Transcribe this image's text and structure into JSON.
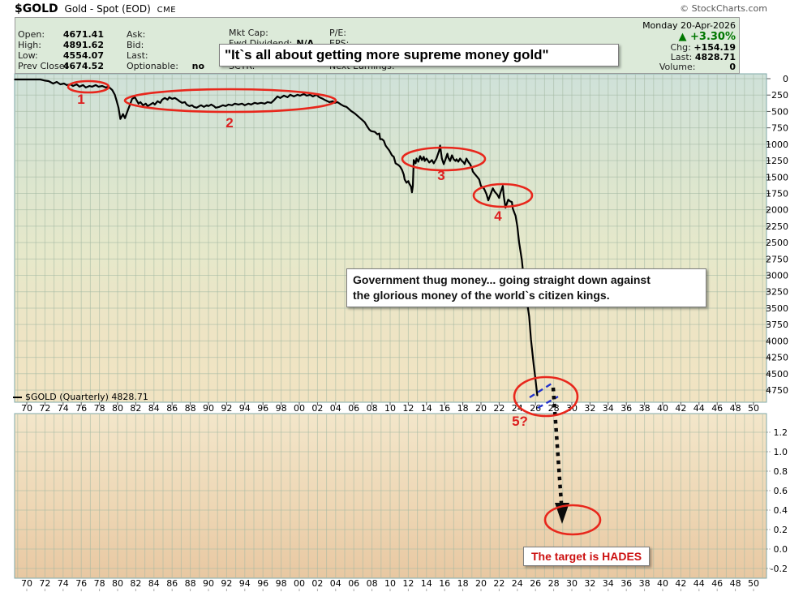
{
  "header": {
    "symbol": "$GOLD",
    "title": "Gold - Spot (EOD)",
    "exchange": "CME",
    "copyright": "© StockCharts.com",
    "date": "Monday 20-Apr-2026",
    "change_arrow": "▲",
    "change_pct": "+3.30%",
    "chg_label": "Chg:",
    "chg_value": "+154.19",
    "last_label": "Last:",
    "last_value": "4828.71",
    "volume_label": "Volume:",
    "volume_value": "0",
    "quote_col1": [
      {
        "label": "Open:",
        "value": "4671.41"
      },
      {
        "label": "High:",
        "value": "4891.62"
      },
      {
        "label": "Low:",
        "value": "4554.07"
      },
      {
        "label": "Prev Close:",
        "value": "4674.52"
      }
    ],
    "quote_col2": [
      {
        "label": "Ask:",
        "value": ""
      },
      {
        "label": "Bid:",
        "value": ""
      },
      {
        "label": "Last:",
        "value": ""
      },
      {
        "label": "Optionable:",
        "value": "no"
      }
    ],
    "quote_col3": [
      {
        "label": "Mkt Cap:",
        "value": ""
      },
      {
        "label": "Fwd Dividend:",
        "value": "N/A"
      },
      {
        "label": "SCTR:",
        "value": ""
      }
    ],
    "quote_col4": [
      {
        "label": "P/E:",
        "value": ""
      },
      {
        "label": "EPS:",
        "value": ""
      },
      {
        "label": "Next Earnings:",
        "value": ""
      }
    ]
  },
  "legend": {
    "marker": "—",
    "text": "$GOLD (Quarterly) 4828.71"
  },
  "annotations": {
    "quote_banner": "\"It`s all about getting more supreme money gold\"",
    "thug_line1": "Government thug money... going straight down against",
    "thug_line2": "the glorious money of the world`s citizen kings.",
    "target_text": "The target is HADES"
  },
  "colors": {
    "up_green": "#007700",
    "annotation_red": "#e8271c",
    "dash_blue": "#2233cc",
    "price_line": "#000000",
    "panel_green": "#dcead9"
  },
  "chart_data": {
    "type": "line",
    "title": "$GOLD Gold - Spot (EOD) CME",
    "subtitle_note": "inverted-scale quarterly gold chart, price axis increases downward",
    "legend_entry": "$GOLD (Quarterly) 4828.71",
    "last_value": 4828.71,
    "x_years_start": 1970,
    "x_years_end": 2050,
    "x_tick_labels": [
      "70",
      "72",
      "74",
      "76",
      "78",
      "80",
      "82",
      "84",
      "86",
      "88",
      "90",
      "92",
      "94",
      "96",
      "98",
      "00",
      "02",
      "04",
      "06",
      "08",
      "10",
      "12",
      "14",
      "16",
      "18",
      "20",
      "22",
      "24",
      "26",
      "28",
      "30",
      "32",
      "34",
      "36",
      "38",
      "40",
      "42",
      "44",
      "46",
      "48",
      "50"
    ],
    "main_axis": {
      "ticks": [
        0,
        250,
        500,
        750,
        1000,
        1250,
        1500,
        1750,
        2000,
        2250,
        2500,
        2750,
        3000,
        3250,
        3500,
        3750,
        4000,
        4250,
        4500,
        4750
      ],
      "inverted": true,
      "ylim": [
        0,
        4750
      ]
    },
    "lower_axis": {
      "ticks": [
        1.2,
        1.0,
        0.8,
        0.6,
        0.4,
        0.2,
        0.0,
        -0.2
      ],
      "ylim": [
        -0.31,
        1.39
      ]
    },
    "grid": true,
    "series": [
      {
        "name": "$GOLD (Quarterly)",
        "points": [
          [
            1968.7,
            12
          ],
          [
            1971.5,
            12
          ],
          [
            1972.0,
            30
          ],
          [
            1972.4,
            37
          ],
          [
            1972.9,
            74
          ],
          [
            1973.3,
            49
          ],
          [
            1973.7,
            86
          ],
          [
            1974.1,
            74
          ],
          [
            1974.4,
            98
          ],
          [
            1974.8,
            86
          ],
          [
            1975.1,
            111
          ],
          [
            1975.5,
            86
          ],
          [
            1975.8,
            123
          ],
          [
            1976.2,
            98
          ],
          [
            1976.5,
            135
          ],
          [
            1976.9,
            111
          ],
          [
            1977.2,
            123
          ],
          [
            1977.6,
            98
          ],
          [
            1977.9,
            123
          ],
          [
            1978.3,
            111
          ],
          [
            1978.7,
            135
          ],
          [
            1979.0,
            123
          ],
          [
            1979.4,
            172
          ],
          [
            1979.7,
            246
          ],
          [
            1979.9,
            344
          ],
          [
            1980.1,
            443
          ],
          [
            1980.3,
            615
          ],
          [
            1980.6,
            541
          ],
          [
            1980.8,
            603
          ],
          [
            1981.1,
            492
          ],
          [
            1981.4,
            381
          ],
          [
            1981.6,
            308
          ],
          [
            1981.9,
            283
          ],
          [
            1982.1,
            332
          ],
          [
            1982.3,
            381
          ],
          [
            1982.5,
            357
          ],
          [
            1982.8,
            406
          ],
          [
            1983.1,
            381
          ],
          [
            1983.3,
            418
          ],
          [
            1983.6,
            394
          ],
          [
            1983.9,
            369
          ],
          [
            1984.1,
            394
          ],
          [
            1984.4,
            344
          ],
          [
            1984.7,
            369
          ],
          [
            1984.9,
            320
          ],
          [
            1985.2,
            295
          ],
          [
            1985.5,
            320
          ],
          [
            1985.7,
            283
          ],
          [
            1986.0,
            308
          ],
          [
            1986.3,
            295
          ],
          [
            1986.6,
            320
          ],
          [
            1986.8,
            344
          ],
          [
            1987.1,
            369
          ],
          [
            1987.4,
            357
          ],
          [
            1987.6,
            394
          ],
          [
            1987.9,
            418
          ],
          [
            1988.2,
            406
          ],
          [
            1988.4,
            431
          ],
          [
            1988.7,
            443
          ],
          [
            1989.0,
            418
          ],
          [
            1989.2,
            406
          ],
          [
            1989.5,
            431
          ],
          [
            1989.8,
            406
          ],
          [
            1990.0,
            418
          ],
          [
            1990.3,
            394
          ],
          [
            1990.6,
            418
          ],
          [
            1990.8,
            443
          ],
          [
            1991.2,
            431
          ],
          [
            1991.6,
            406
          ],
          [
            1991.9,
            418
          ],
          [
            1992.2,
            394
          ],
          [
            1992.6,
            406
          ],
          [
            1992.9,
            381
          ],
          [
            1993.3,
            394
          ],
          [
            1993.7,
            381
          ],
          [
            1994.0,
            406
          ],
          [
            1994.4,
            381
          ],
          [
            1994.7,
            394
          ],
          [
            1995.1,
            369
          ],
          [
            1995.4,
            381
          ],
          [
            1995.8,
            369
          ],
          [
            1996.2,
            381
          ],
          [
            1996.5,
            357
          ],
          [
            1996.9,
            369
          ],
          [
            1997.2,
            332
          ],
          [
            1997.6,
            271
          ],
          [
            1997.9,
            295
          ],
          [
            1998.3,
            258
          ],
          [
            1998.7,
            283
          ],
          [
            1999.0,
            246
          ],
          [
            1999.4,
            271
          ],
          [
            1999.8,
            246
          ],
          [
            2000.1,
            258
          ],
          [
            2000.5,
            234
          ],
          [
            2000.8,
            258
          ],
          [
            2001.2,
            246
          ],
          [
            2001.5,
            271
          ],
          [
            2001.9,
            246
          ],
          [
            2002.2,
            283
          ],
          [
            2002.6,
            308
          ],
          [
            2002.9,
            332
          ],
          [
            2003.3,
            357
          ],
          [
            2003.7,
            344
          ],
          [
            2003.9,
            369
          ],
          [
            2004.2,
            357
          ],
          [
            2004.6,
            394
          ],
          [
            2004.9,
            418
          ],
          [
            2005.2,
            431
          ],
          [
            2005.4,
            455
          ],
          [
            2005.7,
            492
          ],
          [
            2006.1,
            529
          ],
          [
            2006.3,
            554
          ],
          [
            2006.7,
            603
          ],
          [
            2007.0,
            640
          ],
          [
            2007.2,
            664
          ],
          [
            2007.4,
            713
          ],
          [
            2007.7,
            775
          ],
          [
            2007.9,
            800
          ],
          [
            2008.3,
            812
          ],
          [
            2008.6,
            849
          ],
          [
            2008.8,
            836
          ],
          [
            2008.9,
            923
          ],
          [
            2009.1,
            923
          ],
          [
            2009.3,
            947
          ],
          [
            2009.5,
            1021
          ],
          [
            2009.7,
            1058
          ],
          [
            2009.9,
            1095
          ],
          [
            2010.2,
            1169
          ],
          [
            2010.4,
            1193
          ],
          [
            2010.6,
            1292
          ],
          [
            2010.9,
            1316
          ],
          [
            2011.1,
            1341
          ],
          [
            2011.3,
            1390
          ],
          [
            2011.5,
            1464
          ],
          [
            2011.6,
            1538
          ],
          [
            2011.8,
            1587
          ],
          [
            2012.0,
            1562
          ],
          [
            2012.1,
            1599
          ],
          [
            2012.3,
            1648
          ],
          [
            2012.4,
            1734
          ],
          [
            2012.5,
            1636
          ],
          [
            2012.6,
            1242
          ],
          [
            2012.8,
            1292
          ],
          [
            2012.9,
            1218
          ],
          [
            2013.1,
            1267
          ],
          [
            2013.3,
            1181
          ],
          [
            2013.5,
            1242
          ],
          [
            2013.7,
            1193
          ],
          [
            2013.8,
            1255
          ],
          [
            2014.0,
            1218
          ],
          [
            2014.3,
            1279
          ],
          [
            2014.6,
            1242
          ],
          [
            2014.8,
            1292
          ],
          [
            2015.1,
            1218
          ],
          [
            2015.4,
            1095
          ],
          [
            2015.5,
            1021
          ],
          [
            2015.7,
            1218
          ],
          [
            2015.9,
            1304
          ],
          [
            2016.1,
            1230
          ],
          [
            2016.3,
            1144
          ],
          [
            2016.4,
            1205
          ],
          [
            2016.6,
            1255
          ],
          [
            2016.8,
            1169
          ],
          [
            2017.0,
            1230
          ],
          [
            2017.2,
            1255
          ],
          [
            2017.3,
            1230
          ],
          [
            2017.5,
            1267
          ],
          [
            2017.7,
            1218
          ],
          [
            2017.9,
            1255
          ],
          [
            2018.1,
            1279
          ],
          [
            2018.2,
            1304
          ],
          [
            2018.4,
            1218
          ],
          [
            2018.6,
            1267
          ],
          [
            2018.8,
            1304
          ],
          [
            2019.0,
            1365
          ],
          [
            2019.1,
            1415
          ],
          [
            2019.3,
            1452
          ],
          [
            2019.6,
            1501
          ],
          [
            2019.8,
            1538
          ],
          [
            2020.0,
            1636
          ],
          [
            2020.3,
            1673
          ],
          [
            2020.4,
            1697
          ],
          [
            2020.6,
            1759
          ],
          [
            2020.8,
            1857
          ],
          [
            2021.0,
            1784
          ],
          [
            2021.3,
            1673
          ],
          [
            2021.5,
            1722
          ],
          [
            2021.8,
            1771
          ],
          [
            2022.0,
            1820
          ],
          [
            2022.1,
            1759
          ],
          [
            2022.4,
            1636
          ],
          [
            2022.5,
            1784
          ],
          [
            2022.7,
            1968
          ],
          [
            2022.9,
            1882
          ],
          [
            2023.0,
            1845
          ],
          [
            2023.2,
            1870
          ],
          [
            2023.4,
            1882
          ],
          [
            2023.5,
            1980
          ],
          [
            2023.7,
            2054
          ],
          [
            2023.8,
            2091
          ],
          [
            2024.0,
            2251
          ],
          [
            2024.2,
            2497
          ],
          [
            2024.5,
            2768
          ],
          [
            2024.7,
            3038
          ],
          [
            2025.0,
            3333
          ],
          [
            2025.3,
            3629
          ],
          [
            2025.5,
            3973
          ],
          [
            2025.8,
            4367
          ],
          [
            2026.0,
            4588
          ],
          [
            2026.2,
            4829
          ]
        ]
      }
    ],
    "ellipse_annotations": [
      {
        "label": "1",
        "cx": 109,
        "cy": 107,
        "rx": 25,
        "ry": 7,
        "lx": 100,
        "ly": 128
      },
      {
        "label": "2",
        "cx": 284,
        "cy": 124,
        "rx": 130,
        "ry": 14,
        "lx": 283,
        "ly": 157
      },
      {
        "label": "3",
        "cx": 547,
        "cy": 196,
        "rx": 51,
        "ry": 14,
        "lx": 544,
        "ly": 222
      },
      {
        "label": "4",
        "cx": 620,
        "cy": 241,
        "rx": 36,
        "ry": 14,
        "lx": 614,
        "ly": 272
      },
      {
        "label": "5?",
        "cx": 673,
        "cy": 489,
        "rx": 39,
        "ry": 24,
        "lx": 641,
        "ly": 525
      },
      {
        "label": "",
        "cx": 706,
        "cy": 641,
        "rx": 34,
        "ry": 18,
        "lx": 0,
        "ly": 0
      }
    ],
    "blue_dashes": [
      [
        653,
        490,
        680,
        473
      ],
      [
        663,
        503,
        688,
        489
      ]
    ],
    "target_arrow": {
      "x1": 682,
      "y1": 478,
      "x2": 692,
      "y2": 620,
      "head": [
        [
          684,
          620
        ],
        [
          702,
          620
        ],
        [
          693,
          646
        ]
      ]
    }
  }
}
